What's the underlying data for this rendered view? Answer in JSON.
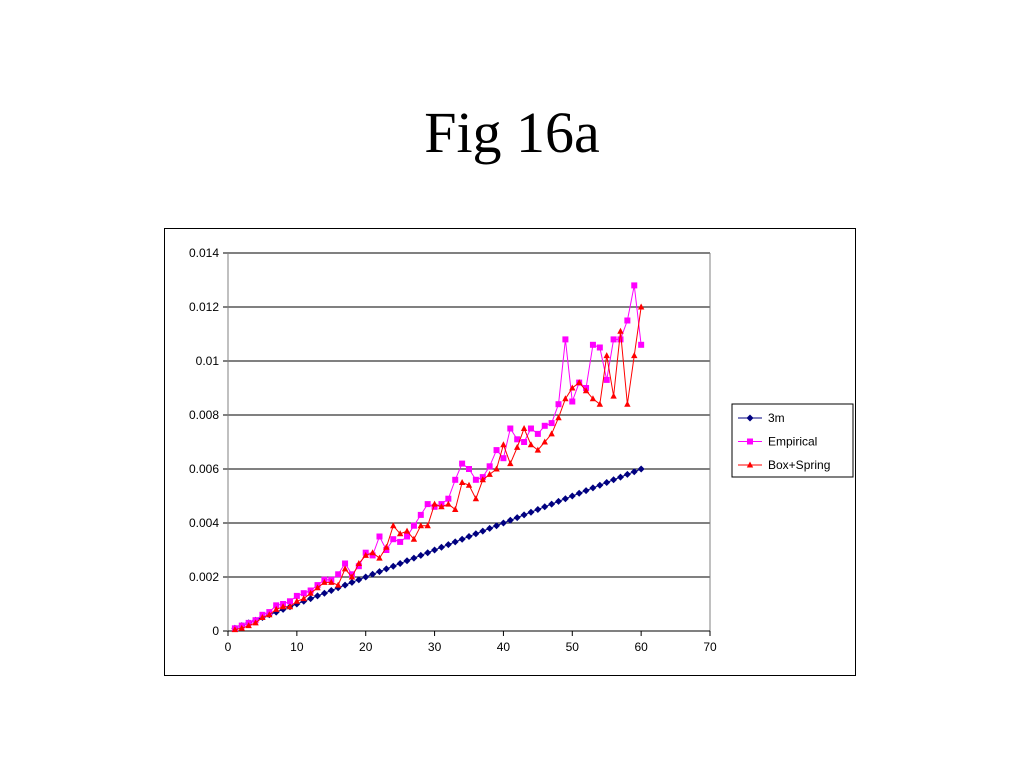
{
  "slide": {
    "title": "Fig 16a"
  },
  "chart_data": {
    "type": "line",
    "title": "",
    "xlabel": "",
    "ylabel": "",
    "xlim": [
      0,
      70
    ],
    "ylim": [
      0,
      0.014
    ],
    "x_ticks": [
      0,
      10,
      20,
      30,
      40,
      50,
      60,
      70
    ],
    "y_ticks": [
      0,
      0.002,
      0.004,
      0.006,
      0.008,
      0.01,
      0.012,
      0.014
    ],
    "x_tick_labels": [
      "0",
      "10",
      "20",
      "30",
      "40",
      "50",
      "60",
      "70"
    ],
    "y_tick_labels": [
      "0",
      "0.002",
      "0.004",
      "0.006",
      "0.008",
      "0.01",
      "0.012",
      "0.014"
    ],
    "grid": "horizontal",
    "legend_position": "right",
    "x": [
      1,
      2,
      3,
      4,
      5,
      6,
      7,
      8,
      9,
      10,
      11,
      12,
      13,
      14,
      15,
      16,
      17,
      18,
      19,
      20,
      21,
      22,
      23,
      24,
      25,
      26,
      27,
      28,
      29,
      30,
      31,
      32,
      33,
      34,
      35,
      36,
      37,
      38,
      39,
      40,
      41,
      42,
      43,
      44,
      45,
      46,
      47,
      48,
      49,
      50,
      51,
      52,
      53,
      54,
      55,
      56,
      57,
      58,
      59,
      60
    ],
    "series": [
      {
        "name": "3m",
        "color": "#000080",
        "marker": "diamond",
        "values": [
          0.0001,
          0.0002,
          0.0003,
          0.0004,
          0.0005,
          0.0006,
          0.0007,
          0.0008,
          0.0009,
          0.001,
          0.0011,
          0.0012,
          0.0013,
          0.0014,
          0.0015,
          0.0016,
          0.0017,
          0.0018,
          0.0019,
          0.002,
          0.0021,
          0.0022,
          0.0023,
          0.0024,
          0.0025,
          0.0026,
          0.0027,
          0.0028,
          0.0029,
          0.003,
          0.0031,
          0.0032,
          0.0033,
          0.0034,
          0.0035,
          0.0036,
          0.0037,
          0.0038,
          0.0039,
          0.004,
          0.0041,
          0.0042,
          0.0043,
          0.0044,
          0.0045,
          0.0046,
          0.0047,
          0.0048,
          0.0049,
          0.005,
          0.0051,
          0.0052,
          0.0053,
          0.0054,
          0.0055,
          0.0056,
          0.0057,
          0.0058,
          0.0059,
          0.006
        ]
      },
      {
        "name": "Empirical",
        "color": "#ff00ff",
        "marker": "square",
        "values": [
          0.0001,
          0.0002,
          0.0003,
          0.0004,
          0.0006,
          0.0007,
          0.00095,
          0.001,
          0.0011,
          0.0013,
          0.0014,
          0.0015,
          0.0017,
          0.0019,
          0.0019,
          0.0021,
          0.0025,
          0.0021,
          0.0024,
          0.0029,
          0.0028,
          0.0035,
          0.003,
          0.0034,
          0.0033,
          0.0035,
          0.0039,
          0.0043,
          0.0047,
          0.0046,
          0.0047,
          0.0049,
          0.0056,
          0.0062,
          0.006,
          0.0056,
          0.0057,
          0.0061,
          0.0067,
          0.0064,
          0.0075,
          0.0071,
          0.007,
          0.0075,
          0.0073,
          0.0076,
          0.0077,
          0.0084,
          0.0108,
          0.0085,
          0.0092,
          0.009,
          0.0106,
          0.0105,
          0.0093,
          0.0108,
          0.0108,
          0.0115,
          0.0128,
          0.0106
        ]
      },
      {
        "name": "Box+Spring",
        "color": "#ff0000",
        "marker": "triangle",
        "values": [
          5e-05,
          0.0001,
          0.0002,
          0.0003,
          0.0005,
          0.0006,
          0.0008,
          0.0009,
          0.0009,
          0.0011,
          0.0012,
          0.0014,
          0.0016,
          0.0018,
          0.0018,
          0.0017,
          0.0023,
          0.002,
          0.0025,
          0.0028,
          0.0029,
          0.0027,
          0.0031,
          0.0039,
          0.0036,
          0.0037,
          0.0034,
          0.0039,
          0.0039,
          0.0047,
          0.0046,
          0.0047,
          0.0045,
          0.0055,
          0.0054,
          0.0049,
          0.0056,
          0.0058,
          0.006,
          0.0069,
          0.0062,
          0.0068,
          0.0075,
          0.0069,
          0.0067,
          0.007,
          0.0073,
          0.0079,
          0.0086,
          0.009,
          0.0092,
          0.0089,
          0.0086,
          0.0084,
          0.0102,
          0.0087,
          0.0111,
          0.0084,
          0.0102,
          0.012
        ]
      }
    ]
  }
}
